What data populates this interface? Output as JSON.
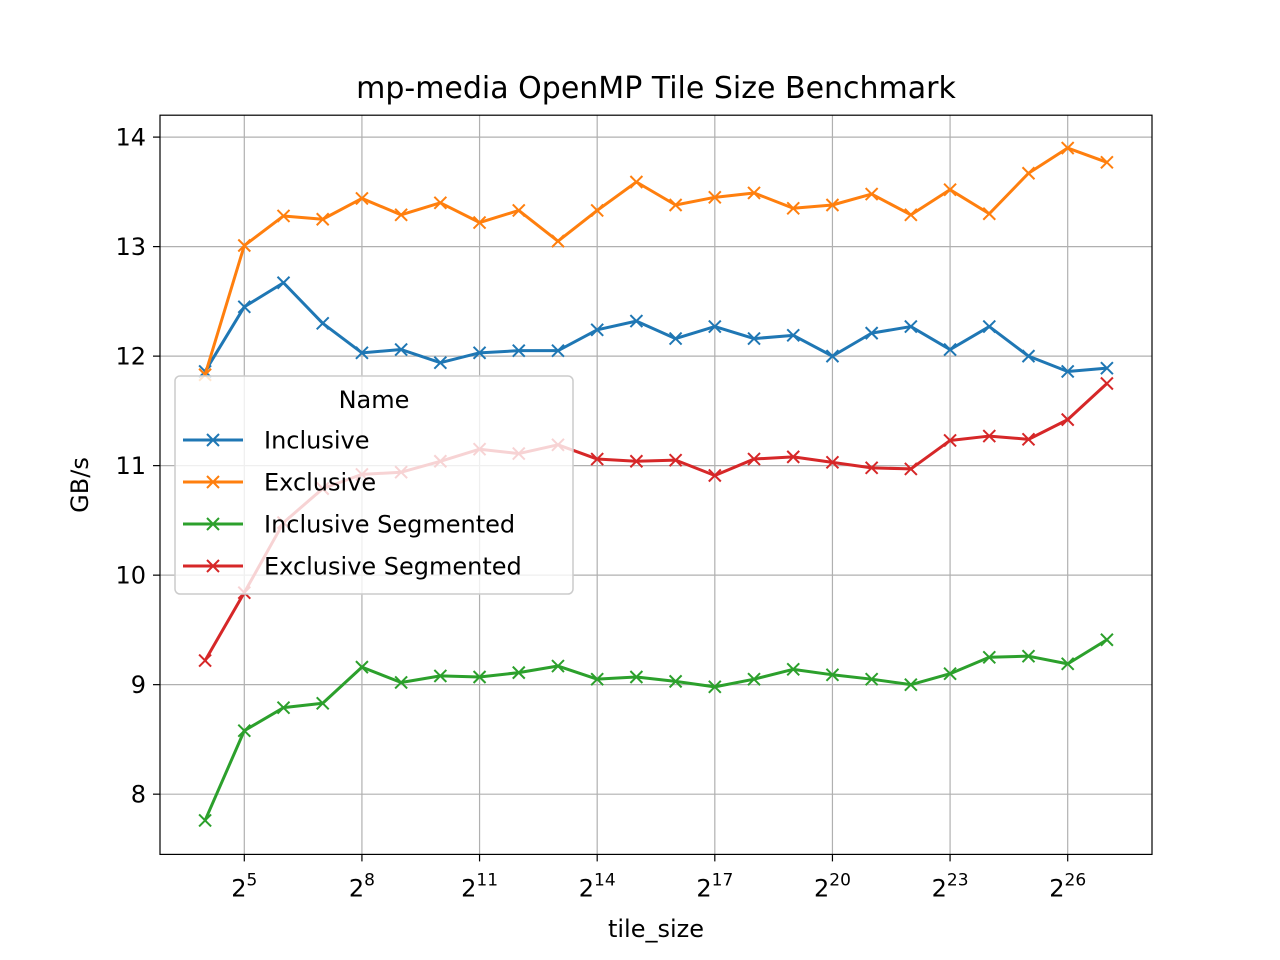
{
  "chart_data": {
    "type": "line",
    "title": "mp-media OpenMP Tile Size Benchmark",
    "xlabel": "tile_size",
    "ylabel": "GB/s",
    "x_scale": "log2",
    "x_ticks": [
      {
        "value": 32,
        "base": "2",
        "exp": "5"
      },
      {
        "value": 256,
        "base": "2",
        "exp": "8"
      },
      {
        "value": 2048,
        "base": "2",
        "exp": "11"
      },
      {
        "value": 16384,
        "base": "2",
        "exp": "14"
      },
      {
        "value": 131072,
        "base": "2",
        "exp": "17"
      },
      {
        "value": 1048576,
        "base": "2",
        "exp": "20"
      },
      {
        "value": 8388608,
        "base": "2",
        "exp": "23"
      },
      {
        "value": 67108864,
        "base": "2",
        "exp": "26"
      }
    ],
    "y_ticks": [
      "8",
      "9",
      "10",
      "11",
      "12",
      "13",
      "14"
    ],
    "ylim": [
      7.45,
      14.2
    ],
    "grid": true,
    "marker": "x",
    "x": [
      16,
      32,
      64,
      128,
      256,
      512,
      1024,
      2048,
      4096,
      8192,
      16384,
      32768,
      65536,
      131072,
      262144,
      524288,
      1048576,
      2097152,
      4194304,
      8388608,
      16777216,
      33554432,
      67108864,
      134217728
    ],
    "series": [
      {
        "name": "Inclusive",
        "color": "#1f77b4",
        "values": [
          11.86,
          12.45,
          12.67,
          12.3,
          12.03,
          12.06,
          11.94,
          12.03,
          12.05,
          12.05,
          12.24,
          12.32,
          12.16,
          12.27,
          12.16,
          12.19,
          12.0,
          12.21,
          12.27,
          12.06,
          12.27,
          12.0,
          11.86,
          11.89
        ]
      },
      {
        "name": "Exclusive",
        "color": "#ff7f0e",
        "values": [
          11.83,
          13.01,
          13.28,
          13.25,
          13.44,
          13.29,
          13.4,
          13.22,
          13.33,
          13.05,
          13.33,
          13.59,
          13.38,
          13.45,
          13.49,
          13.35,
          13.38,
          13.48,
          13.29,
          13.52,
          13.3,
          13.67,
          13.9,
          13.77
        ]
      },
      {
        "name": "Inclusive Segmented",
        "color": "#2ca02c",
        "values": [
          7.76,
          8.58,
          8.79,
          8.83,
          9.16,
          9.02,
          9.08,
          9.07,
          9.11,
          9.17,
          9.05,
          9.07,
          9.03,
          8.98,
          9.05,
          9.14,
          9.09,
          9.05,
          9.0,
          9.1,
          9.25,
          9.26,
          9.19,
          9.41
        ]
      },
      {
        "name": "Exclusive Segmented",
        "color": "#d62728",
        "values": [
          9.22,
          9.84,
          10.48,
          10.79,
          10.92,
          10.94,
          11.04,
          11.15,
          11.11,
          11.19,
          11.06,
          11.04,
          11.05,
          10.91,
          11.06,
          11.08,
          11.03,
          10.98,
          10.97,
          11.23,
          11.27,
          11.24,
          11.42,
          11.75
        ]
      }
    ],
    "legend": {
      "title": "Name",
      "placement": "center-left"
    }
  }
}
